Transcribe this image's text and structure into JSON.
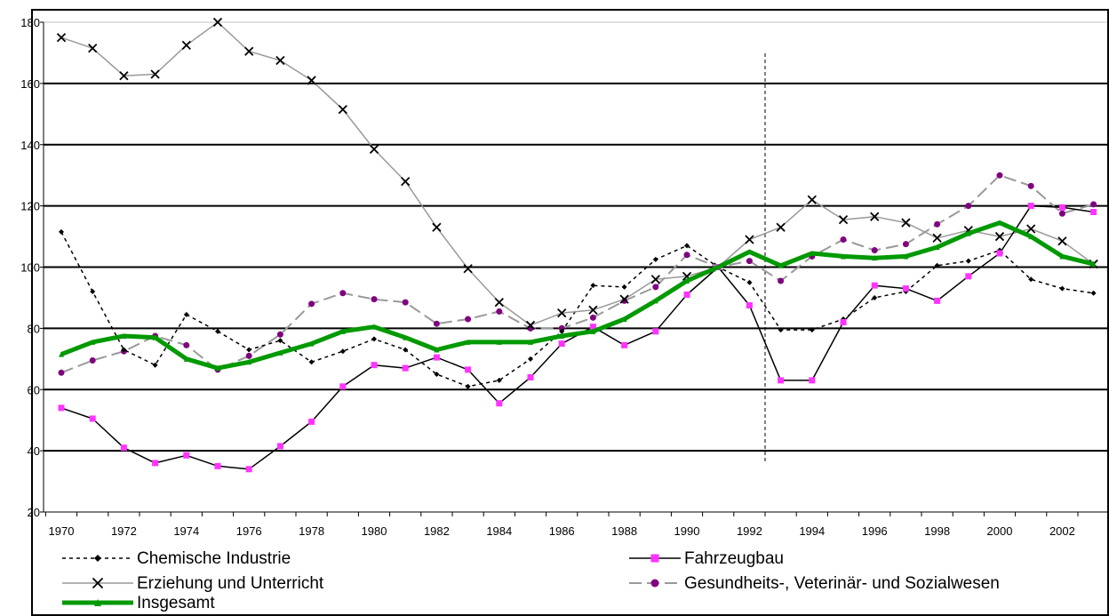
{
  "chart_data": {
    "type": "line",
    "title": "",
    "xlabel": "",
    "ylabel": "",
    "xlim": [
      1970,
      2003
    ],
    "ylim": [
      20,
      180
    ],
    "y_ticks": [
      "20",
      "40",
      "60",
      "80",
      "100",
      "120",
      "140",
      "160",
      "180"
    ],
    "x_ticks": [
      "1970",
      "1972",
      "1974",
      "1976",
      "1978",
      "1980",
      "1982",
      "1984",
      "1986",
      "1988",
      "1990",
      "1992",
      "1994",
      "1996",
      "1998",
      "2000",
      "2002"
    ],
    "grid": "horizontal",
    "reference_line_year": 1992.5,
    "legend_position": "bottom",
    "x": [
      1970,
      1971,
      1972,
      1973,
      1974,
      1975,
      1976,
      1977,
      1978,
      1979,
      1980,
      1981,
      1982,
      1983,
      1984,
      1985,
      1986,
      1987,
      1988,
      1989,
      1990,
      1991,
      1992,
      1993,
      1994,
      1995,
      1996,
      1997,
      1998,
      1999,
      2000,
      2001,
      2002,
      2003
    ],
    "series": [
      {
        "name": "Chemische Industrie",
        "color": "#000000",
        "values": [
          111.5,
          92,
          73,
          68,
          84.5,
          79,
          73,
          76,
          69,
          72.5,
          76.5,
          73,
          65,
          61,
          63,
          70,
          79,
          94,
          93.5,
          102.5,
          107,
          100,
          95,
          79.5,
          79.5,
          83,
          90,
          92,
          100.5,
          102,
          105.5,
          96,
          93,
          91.5
        ]
      },
      {
        "name": "Fahrzeugbau",
        "color": "#000000",
        "marker_color": "#ff33ff",
        "values": [
          54,
          50.5,
          41,
          36,
          38.5,
          35,
          34,
          41.5,
          49.5,
          61,
          68,
          67,
          70.5,
          66.5,
          55.5,
          64,
          75,
          80.5,
          74.5,
          79,
          91,
          100,
          87.5,
          63,
          63,
          82,
          94,
          93,
          89,
          97,
          104.5,
          120,
          119.5,
          118
        ]
      },
      {
        "name": "Erziehung und Unterricht",
        "color": "#999999",
        "marker_color": "#000000",
        "values": [
          175,
          171.5,
          162.5,
          163,
          172.5,
          180,
          170.5,
          167.5,
          161,
          151.5,
          138.5,
          128,
          113,
          99.5,
          88.5,
          81,
          85,
          86,
          89.5,
          96,
          97,
          100,
          109,
          113,
          122,
          115.5,
          116.5,
          114.5,
          109.5,
          112,
          110,
          112.5,
          108.5,
          101
        ]
      },
      {
        "name": "Gesundheits-, Veterinär- und Sozialwesen",
        "color": "#999999",
        "marker_color": "#800080",
        "values": [
          65.5,
          69.5,
          72.5,
          77.5,
          74.5,
          66.5,
          71,
          78,
          88,
          91.5,
          89.5,
          88.5,
          81.5,
          83,
          85.5,
          80,
          80,
          83.5,
          89,
          93.5,
          104,
          100,
          102,
          95.5,
          103.5,
          109,
          105.5,
          107.5,
          114,
          120,
          130,
          126.5,
          117.5,
          120.5
        ]
      },
      {
        "name": "Insgesamt",
        "color": "#009900",
        "values": [
          71.5,
          75.5,
          77.5,
          77,
          70,
          67,
          69,
          72,
          75,
          79,
          80.5,
          77,
          73,
          75.5,
          75.5,
          75.5,
          77.5,
          79,
          83,
          89,
          95.5,
          100,
          105,
          100.5,
          104.5,
          103.5,
          103,
          103.5,
          106.5,
          111,
          114.5,
          110,
          103.5,
          101
        ]
      }
    ]
  }
}
